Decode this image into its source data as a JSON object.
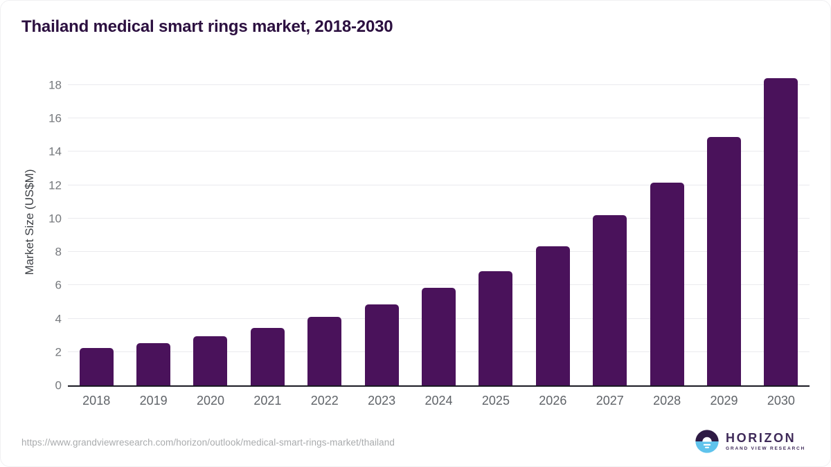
{
  "chart_data": {
    "type": "bar",
    "title": "Thailand medical smart rings market, 2018-2030",
    "categories": [
      "2018",
      "2019",
      "2020",
      "2021",
      "2022",
      "2023",
      "2024",
      "2025",
      "2026",
      "2027",
      "2028",
      "2029",
      "2030"
    ],
    "values": [
      2.25,
      2.55,
      2.95,
      3.45,
      4.1,
      4.85,
      5.85,
      6.85,
      8.35,
      10.2,
      12.15,
      14.9,
      18.4
    ],
    "xlabel": "",
    "ylabel": "Market Size (US$M)",
    "ylim": [
      0,
      18.95
    ],
    "yticks": [
      0,
      2,
      4,
      6,
      8,
      10,
      12,
      14,
      16,
      18
    ],
    "grid": true,
    "legend": false,
    "bar_color": "#4a125b"
  },
  "footer": {
    "source_url": "https://www.grandviewresearch.com/horizon/outlook/medical-smart-rings-market/thailand",
    "logo": {
      "name": "HORIZON",
      "subtext": "GRAND VIEW RESEARCH"
    }
  },
  "colors": {
    "title": "#2c1040",
    "bar": "#4a125b",
    "axis": "#1a1a22",
    "gridline": "#eaeaee",
    "y_tick_text": "#75787c",
    "x_tick_text": "#5f6368",
    "url_text": "#a9abad",
    "logo_dark": "#2e1a44",
    "logo_blue": "#5fc3ec"
  }
}
